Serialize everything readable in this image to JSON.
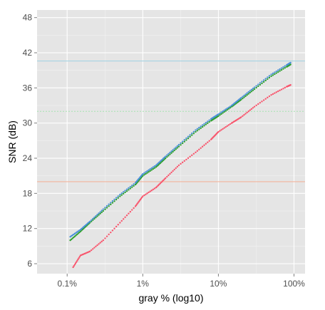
{
  "chart_data": {
    "type": "scatter",
    "title": "",
    "xlabel": "gray % (log10)",
    "ylabel": "SNR (dB)",
    "x_scale": "log10",
    "x_unit": "%",
    "xlim": [
      0.04,
      140
    ],
    "ylim": [
      4.3,
      49.3
    ],
    "x_ticks": [
      {
        "value": 0.1,
        "label": "0.1%"
      },
      {
        "value": 1,
        "label": "1%"
      },
      {
        "value": 10,
        "label": "10%"
      },
      {
        "value": 100,
        "label": "100%"
      }
    ],
    "y_ticks": [
      6,
      12,
      18,
      24,
      30,
      36,
      42,
      48
    ],
    "grid": true,
    "legend": "none",
    "colors": {
      "panel_background": "#e5e5e5",
      "grid_major": "#ffffff",
      "grid_minor": "#f2f2f2",
      "red": "#f8566d",
      "green": "#2ca02c",
      "blue": "#4a90d9"
    },
    "series": [
      {
        "color": "#f8566d",
        "x": [
          0.12,
          0.15,
          0.2,
          0.3,
          0.5,
          0.8,
          1.0,
          1.5,
          2.0,
          3.0,
          5.0,
          8.0,
          10,
          15,
          20,
          30,
          50,
          80,
          90
        ],
        "y": [
          5.4,
          7.4,
          8.1,
          10.0,
          13.0,
          15.8,
          17.5,
          19.0,
          20.6,
          22.8,
          25.0,
          27.2,
          28.5,
          30.0,
          31.0,
          32.8,
          34.8,
          36.2,
          36.5
        ]
      },
      {
        "color": "#2ca02c",
        "x": [
          0.11,
          0.15,
          0.2,
          0.3,
          0.5,
          0.8,
          1.0,
          1.5,
          2.0,
          3.0,
          5.0,
          8.0,
          10,
          15,
          20,
          30,
          50,
          80,
          90
        ],
        "y": [
          10.0,
          11.5,
          13.0,
          15.0,
          17.5,
          19.5,
          21.0,
          22.5,
          24.0,
          26.0,
          28.5,
          30.4,
          31.2,
          32.8,
          34.0,
          35.8,
          38.0,
          39.6,
          40.0
        ]
      },
      {
        "color": "#4a90d9",
        "x": [
          0.11,
          0.15,
          0.2,
          0.3,
          0.5,
          0.8,
          1.0,
          1.5,
          2.0,
          3.0,
          5.0,
          8.0,
          10,
          15,
          20,
          30,
          50,
          80,
          90
        ],
        "y": [
          10.6,
          11.8,
          13.2,
          15.3,
          17.8,
          19.8,
          21.3,
          22.8,
          24.3,
          26.3,
          28.8,
          30.7,
          31.5,
          33.0,
          34.3,
          36.1,
          38.3,
          39.9,
          40.3
        ]
      }
    ],
    "reference_lines": [
      {
        "y": 20,
        "color": "#f4b49c",
        "style": "solid"
      },
      {
        "y": 32,
        "color": "#a6e3b0",
        "style": "dotted"
      },
      {
        "y": 40.6,
        "color": "#a6d4e3",
        "style": "solid"
      }
    ]
  }
}
